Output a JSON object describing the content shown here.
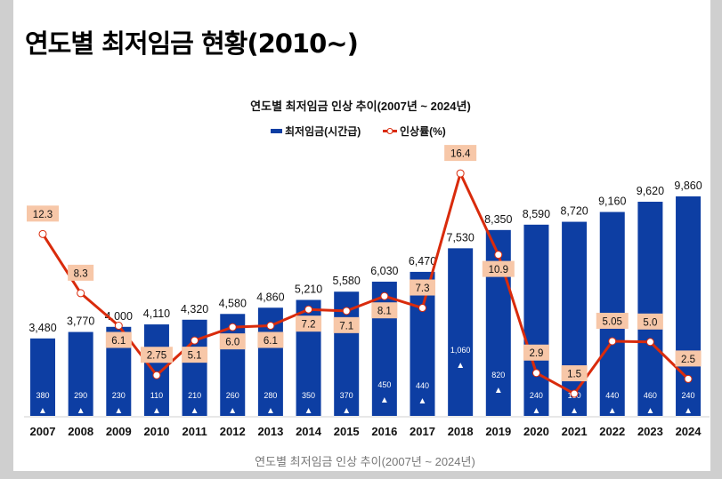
{
  "page_title": "연도별 최저임금 현황(2010~)",
  "caption": "연도별 최저임금 인상 추이(2007년 ~ 2024년)",
  "colors": {
    "bar": "#0d3ea3",
    "line": "#d92b0c",
    "label_box": "#f7c7a8",
    "background": "#cfcfcf"
  },
  "chart_data": {
    "type": "bar+line",
    "title": "연도별 최저임금 인상 추이(2007년 ~ 2024년)",
    "legend_position": "top",
    "grid": false,
    "categories": [
      "2007",
      "2008",
      "2009",
      "2010",
      "2011",
      "2012",
      "2013",
      "2014",
      "2015",
      "2016",
      "2017",
      "2018",
      "2019",
      "2020",
      "2021",
      "2022",
      "2023",
      "2024"
    ],
    "series": [
      {
        "name": "최저임금(시간급)",
        "type": "bar",
        "values": [
          3480,
          3770,
          4000,
          4110,
          4320,
          4580,
          4860,
          5210,
          5580,
          6030,
          6470,
          7530,
          8350,
          8590,
          8720,
          9160,
          9620,
          9860
        ],
        "labels": [
          "3,480",
          "3,770",
          "4,000",
          "4,110",
          "4,320",
          "4,580",
          "4,860",
          "5,210",
          "5,580",
          "6,030",
          "6,470",
          "7,530",
          "8,350",
          "8,590",
          "8,720",
          "9,160",
          "9,620",
          "9,860"
        ]
      },
      {
        "name": "인상률(%)",
        "type": "line",
        "values": [
          12.3,
          8.3,
          6.1,
          2.75,
          5.1,
          6.0,
          6.1,
          7.2,
          7.1,
          8.1,
          7.3,
          16.4,
          10.9,
          2.9,
          1.5,
          5.05,
          5.0,
          2.5
        ],
        "labels": [
          "12.3",
          "8.3",
          "6.1",
          "2.75",
          "5.1",
          "6.0",
          "6.1",
          "7.2",
          "7.1",
          "8.1",
          "7.3",
          "16.4",
          "10.9",
          "2.9",
          "1.5",
          "5.05",
          "5.0",
          "2.5"
        ]
      }
    ],
    "increase_amounts": [
      "380",
      "290",
      "230",
      "110",
      "210",
      "260",
      "280",
      "350",
      "370",
      "450",
      "440",
      "1,060",
      "820",
      "240",
      "130",
      "440",
      "460",
      "240"
    ],
    "increase_marker": "▲"
  }
}
